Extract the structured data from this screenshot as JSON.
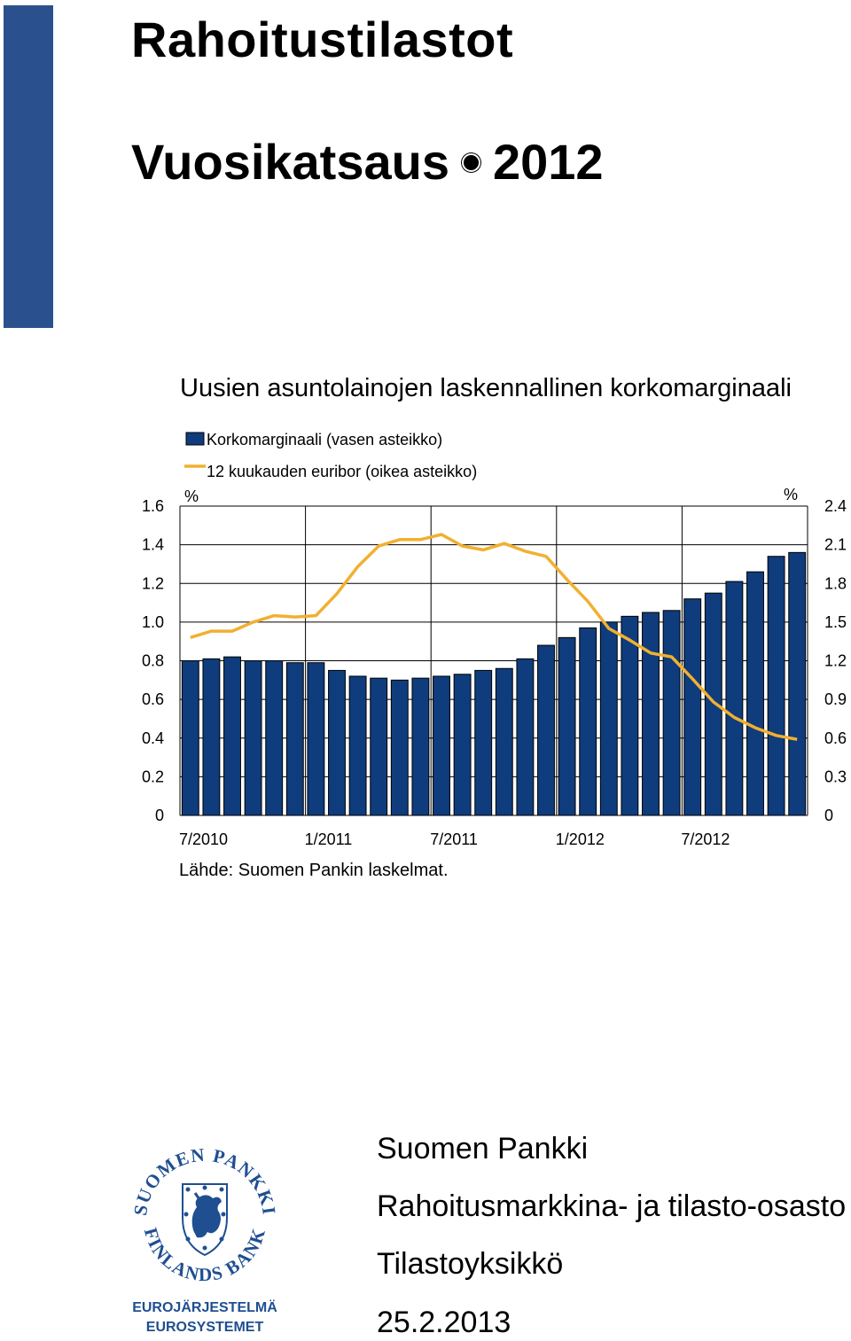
{
  "header": {
    "title": "Rahoitustilastot",
    "subtitle_word": "Vuosikatsaus",
    "subtitle_year": "2012"
  },
  "colors": {
    "sidebar": "#2a518d",
    "bar": "#0f3c7c",
    "bar_border": "#000000",
    "line": "#f0b030",
    "grid": "#000000",
    "logo_blue": "#1f4f91"
  },
  "chart_data": {
    "type": "bar",
    "title": "Uusien asuntolainojen laskennallinen korkomarginaali",
    "legend": [
      {
        "label": "Korkomarginaali (vasen asteikko)",
        "kind": "bar"
      },
      {
        "label": "12 kuukauden euribor (oikea asteikko)",
        "kind": "line"
      }
    ],
    "legend_placement": "top-left",
    "unit_left": "%",
    "unit_right": "%",
    "ylim_left": [
      0,
      1.6
    ],
    "ylim_right": [
      0,
      2.4
    ],
    "yticks_left": [
      "0",
      "0.2",
      "0.4",
      "0.6",
      "0.8",
      "1.0",
      "1.2",
      "1.4",
      "1.6"
    ],
    "yticks_right": [
      "0",
      "0.3",
      "0.6",
      "0.9",
      "1.2",
      "1.5",
      "1.8",
      "2.1",
      "2.4"
    ],
    "xticks": [
      "7/2010",
      "1/2011",
      "7/2011",
      "1/2012",
      "7/2012"
    ],
    "grid": "vertical at x ticks, horizontal at y ticks",
    "x": [
      "7/2010",
      "8/2010",
      "9/2010",
      "10/2010",
      "11/2010",
      "12/2010",
      "1/2011",
      "2/2011",
      "3/2011",
      "4/2011",
      "5/2011",
      "6/2011",
      "7/2011",
      "8/2011",
      "9/2011",
      "10/2011",
      "11/2011",
      "12/2011",
      "1/2012",
      "2/2012",
      "3/2012",
      "4/2012",
      "5/2012",
      "6/2012",
      "7/2012",
      "8/2012",
      "9/2012",
      "10/2012",
      "11/2012",
      "12/2012"
    ],
    "series": [
      {
        "name": "Korkomarginaali (vasen asteikko)",
        "type": "bar",
        "axis": "left",
        "values": [
          0.8,
          0.81,
          0.82,
          0.8,
          0.8,
          0.79,
          0.79,
          0.75,
          0.72,
          0.71,
          0.7,
          0.71,
          0.72,
          0.73,
          0.75,
          0.76,
          0.81,
          0.88,
          0.92,
          0.97,
          1.0,
          1.03,
          1.05,
          1.06,
          1.12,
          1.15,
          1.21,
          1.26,
          1.34,
          1.36
        ]
      },
      {
        "name": "12 kuukauden euribor (oikea asteikko)",
        "type": "line",
        "axis": "right",
        "values": [
          1.38,
          1.43,
          1.43,
          1.5,
          1.55,
          1.54,
          1.55,
          1.72,
          1.93,
          2.09,
          2.14,
          2.14,
          2.18,
          2.09,
          2.06,
          2.11,
          2.05,
          2.01,
          1.83,
          1.66,
          1.45,
          1.36,
          1.26,
          1.23,
          1.06,
          0.88,
          0.76,
          0.68,
          0.62,
          0.59
        ]
      }
    ]
  },
  "source": "Lähde: Suomen Pankin laskelmat.",
  "logo": {
    "name_fi": "SUOMEN PANKKI",
    "name_en": "FINLANDS BANK",
    "line1": "EUROJÄRJESTELMÄ",
    "line2": "EUROSYSTEMET"
  },
  "footer": {
    "org": "Suomen Pankki",
    "department": "Rahoitusmarkkina- ja tilasto-osasto",
    "unit": "Tilastoyksikkö",
    "date": "25.2.2013"
  }
}
